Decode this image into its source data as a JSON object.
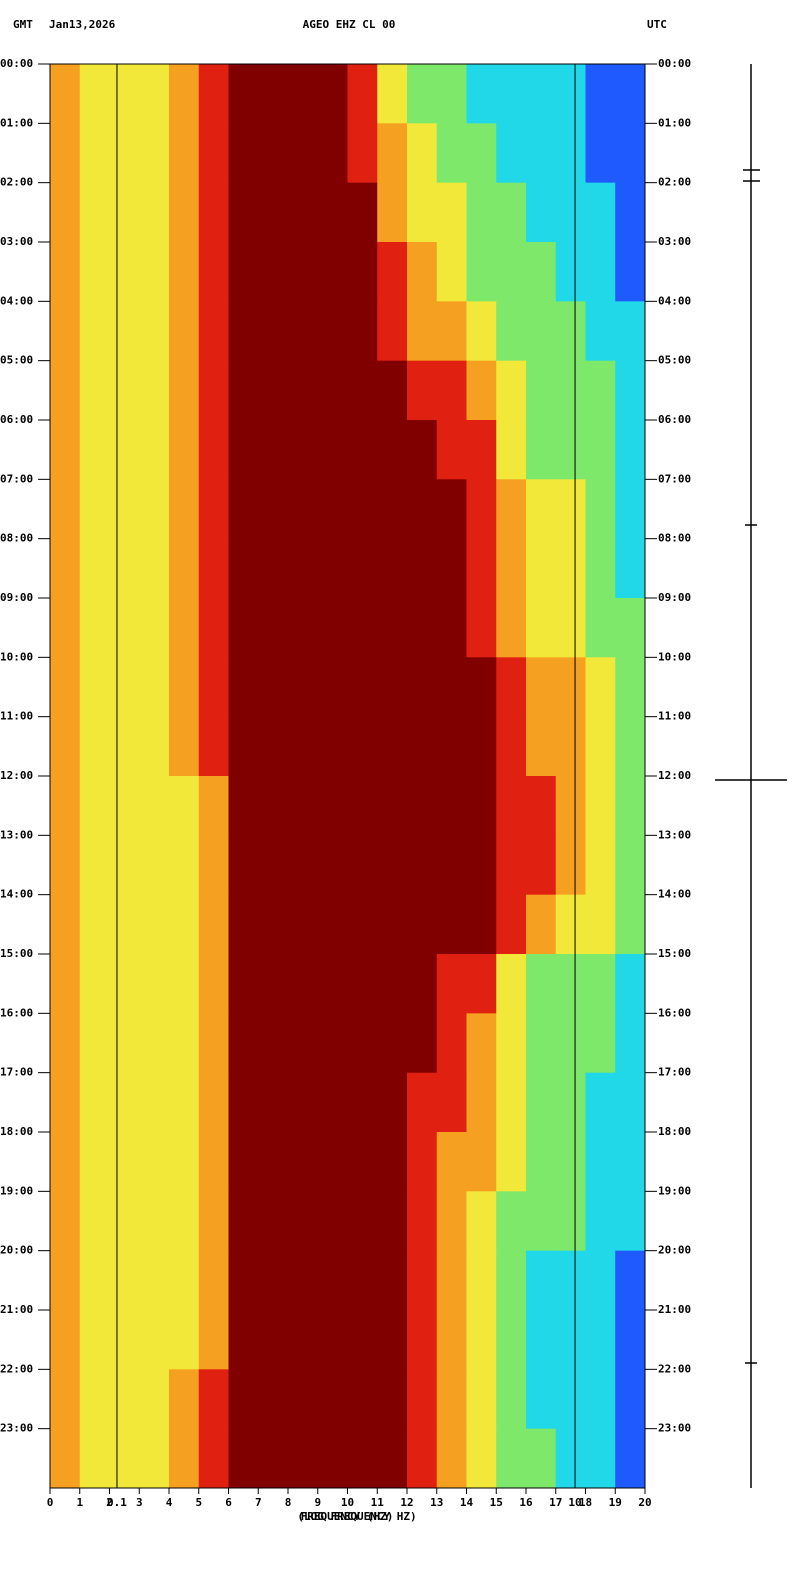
{
  "chart_data": {
    "type": "heatmap",
    "title": "AGEO EHZ CL 00",
    "zone_left": "GMT",
    "date": "Jan13,2026",
    "zone_right": "UTC",
    "xlabel": "FREQUENCY (HZ)",
    "x2label": "(LOG FREQUENCY HZ)",
    "xbins": [
      0,
      1,
      2,
      3,
      4,
      5,
      6,
      7,
      8,
      9,
      10,
      11,
      12,
      13,
      14,
      15,
      16,
      17,
      18,
      19,
      20
    ],
    "ybins": [
      0,
      1,
      2,
      3,
      4,
      5,
      6,
      7,
      8,
      9,
      10,
      11,
      12,
      13,
      14,
      15,
      16,
      17,
      18,
      19,
      20,
      21,
      22,
      23,
      24
    ],
    "xlim": [
      0,
      20
    ],
    "ylim": [
      0,
      24
    ],
    "xticks": [
      0,
      1,
      2,
      3,
      4,
      5,
      6,
      7,
      8,
      9,
      10,
      11,
      12,
      13,
      14,
      15,
      16,
      17,
      18,
      19,
      20
    ],
    "x2lim": [
      0.051,
      20.2
    ],
    "x2log": true,
    "x2ticks": [
      {
        "value": 0.1,
        "label": "0.1"
      },
      {
        "value": 10,
        "label": "10"
      }
    ],
    "yticks": [
      {
        "value": 0,
        "label": "00:00"
      },
      {
        "value": 1,
        "label": "01:00"
      },
      {
        "value": 2,
        "label": "02:00"
      },
      {
        "value": 3,
        "label": "03:00"
      },
      {
        "value": 4,
        "label": "04:00"
      },
      {
        "value": 5,
        "label": "05:00"
      },
      {
        "value": 6,
        "label": "06:00"
      },
      {
        "value": 7,
        "label": "07:00"
      },
      {
        "value": 8,
        "label": "08:00"
      },
      {
        "value": 9,
        "label": "09:00"
      },
      {
        "value": 10,
        "label": "10:00"
      },
      {
        "value": 11,
        "label": "11:00"
      },
      {
        "value": 12,
        "label": "12:00"
      },
      {
        "value": 13,
        "label": "13:00"
      },
      {
        "value": 14,
        "label": "14:00"
      },
      {
        "value": 15,
        "label": "15:00"
      },
      {
        "value": 16,
        "label": "16:00"
      },
      {
        "value": 17,
        "label": "17:00"
      },
      {
        "value": 18,
        "label": "18:00"
      },
      {
        "value": 19,
        "label": "19:00"
      },
      {
        "value": 20,
        "label": "20:00"
      },
      {
        "value": 21,
        "label": "21:00"
      },
      {
        "value": 22,
        "label": "22:00"
      },
      {
        "value": 23,
        "label": "23:00"
      }
    ],
    "colorscale": [
      "#1e5aff",
      "#20d8e8",
      "#7ee86a",
      "#f2e83a",
      "#f5a020",
      "#e02010",
      "#800000"
    ],
    "clim": [
      0,
      6
    ],
    "z": [
      [
        4,
        3,
        3,
        3,
        4,
        5,
        6,
        6,
        6,
        6,
        5,
        3,
        2,
        2,
        1,
        1,
        1,
        1,
        0,
        0
      ],
      [
        4,
        3,
        3,
        3,
        4,
        5,
        6,
        6,
        6,
        6,
        5,
        4,
        3,
        2,
        2,
        1,
        1,
        1,
        0,
        0
      ],
      [
        4,
        3,
        3,
        3,
        4,
        5,
        6,
        6,
        6,
        6,
        6,
        4,
        3,
        3,
        2,
        2,
        1,
        1,
        1,
        0
      ],
      [
        4,
        3,
        3,
        3,
        4,
        5,
        6,
        6,
        6,
        6,
        6,
        5,
        4,
        3,
        2,
        2,
        2,
        1,
        1,
        0
      ],
      [
        4,
        3,
        3,
        3,
        4,
        5,
        6,
        6,
        6,
        6,
        6,
        5,
        4,
        4,
        3,
        2,
        2,
        2,
        1,
        1
      ],
      [
        4,
        3,
        3,
        3,
        4,
        5,
        6,
        6,
        6,
        6,
        6,
        6,
        5,
        5,
        4,
        3,
        2,
        2,
        2,
        1
      ],
      [
        4,
        3,
        3,
        3,
        4,
        5,
        6,
        6,
        6,
        6,
        6,
        6,
        6,
        5,
        5,
        3,
        2,
        2,
        2,
        1
      ],
      [
        4,
        3,
        3,
        3,
        4,
        5,
        6,
        6,
        6,
        6,
        6,
        6,
        6,
        6,
        5,
        4,
        3,
        3,
        2,
        1
      ],
      [
        4,
        3,
        3,
        3,
        4,
        5,
        6,
        6,
        6,
        6,
        6,
        6,
        6,
        6,
        5,
        4,
        3,
        3,
        2,
        1
      ],
      [
        4,
        3,
        3,
        3,
        4,
        5,
        6,
        6,
        6,
        6,
        6,
        6,
        6,
        6,
        5,
        4,
        3,
        3,
        2,
        2
      ],
      [
        4,
        3,
        3,
        3,
        4,
        5,
        6,
        6,
        6,
        6,
        6,
        6,
        6,
        6,
        6,
        5,
        4,
        4,
        3,
        2
      ],
      [
        4,
        3,
        3,
        3,
        4,
        5,
        6,
        6,
        6,
        6,
        6,
        6,
        6,
        6,
        6,
        5,
        4,
        4,
        3,
        2
      ],
      [
        4,
        3,
        3,
        3,
        3,
        4,
        6,
        6,
        6,
        6,
        6,
        6,
        6,
        6,
        6,
        5,
        5,
        4,
        3,
        2
      ],
      [
        4,
        3,
        3,
        3,
        3,
        4,
        6,
        6,
        6,
        6,
        6,
        6,
        6,
        6,
        6,
        5,
        5,
        4,
        3,
        2
      ],
      [
        4,
        3,
        3,
        3,
        3,
        4,
        6,
        6,
        6,
        6,
        6,
        6,
        6,
        6,
        6,
        5,
        4,
        3,
        3,
        2
      ],
      [
        4,
        3,
        3,
        3,
        3,
        4,
        6,
        6,
        6,
        6,
        6,
        6,
        6,
        5,
        5,
        3,
        2,
        2,
        2,
        1
      ],
      [
        4,
        3,
        3,
        3,
        3,
        4,
        6,
        6,
        6,
        6,
        6,
        6,
        6,
        5,
        4,
        3,
        2,
        2,
        2,
        1
      ],
      [
        4,
        3,
        3,
        3,
        3,
        4,
        6,
        6,
        6,
        6,
        6,
        6,
        5,
        5,
        4,
        3,
        2,
        2,
        1,
        1
      ],
      [
        4,
        3,
        3,
        3,
        3,
        4,
        6,
        6,
        6,
        6,
        6,
        6,
        5,
        4,
        4,
        3,
        2,
        2,
        1,
        1
      ],
      [
        4,
        3,
        3,
        3,
        3,
        4,
        6,
        6,
        6,
        6,
        6,
        6,
        5,
        4,
        3,
        2,
        2,
        2,
        1,
        1
      ],
      [
        4,
        3,
        3,
        3,
        3,
        4,
        6,
        6,
        6,
        6,
        6,
        6,
        5,
        4,
        3,
        2,
        1,
        1,
        1,
        0
      ],
      [
        4,
        3,
        3,
        3,
        3,
        4,
        6,
        6,
        6,
        6,
        6,
        6,
        5,
        4,
        3,
        2,
        1,
        1,
        1,
        0
      ],
      [
        4,
        3,
        3,
        3,
        4,
        5,
        6,
        6,
        6,
        6,
        6,
        6,
        5,
        4,
        3,
        2,
        1,
        1,
        1,
        0
      ],
      [
        4,
        3,
        3,
        3,
        4,
        5,
        6,
        6,
        6,
        6,
        6,
        6,
        5,
        4,
        3,
        2,
        2,
        1,
        1,
        0
      ]
    ]
  }
}
